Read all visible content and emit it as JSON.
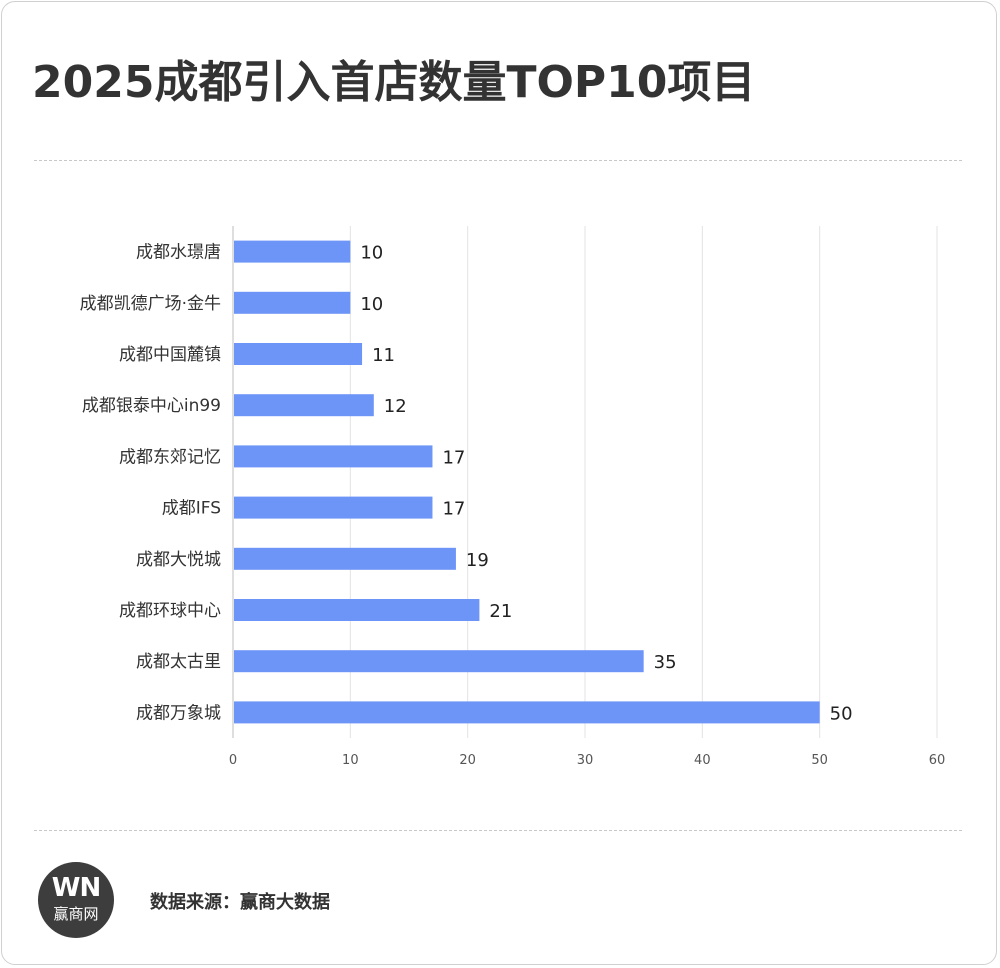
{
  "title": "2025成都引入首店数量TOP10项目",
  "footer": {
    "logo_mark": "WN",
    "logo_name": "赢商网",
    "source_label": "数据来源：",
    "source_value": "赢商大数据"
  },
  "colors": {
    "bar": "#6d95f7",
    "grid": "#e3e3e3",
    "text": "#333333"
  },
  "chart_data": {
    "type": "bar",
    "orientation": "horizontal",
    "categories": [
      "成都水璟唐",
      "成都凯德广场·金牛",
      "成都中国麓镇",
      "成都银泰中心in99",
      "成都东郊记忆",
      "成都IFS",
      "成都大悦城",
      "成都环球中心",
      "成都太古里",
      "成都万象城"
    ],
    "values": [
      10,
      10,
      11,
      12,
      17,
      17,
      19,
      21,
      35,
      50
    ],
    "xlim": [
      0,
      60
    ],
    "xticks": [
      0,
      10,
      20,
      30,
      40,
      50,
      60
    ],
    "grid": true,
    "data_labels": true,
    "legend": "none",
    "title": "",
    "xlabel": "",
    "ylabel": ""
  }
}
